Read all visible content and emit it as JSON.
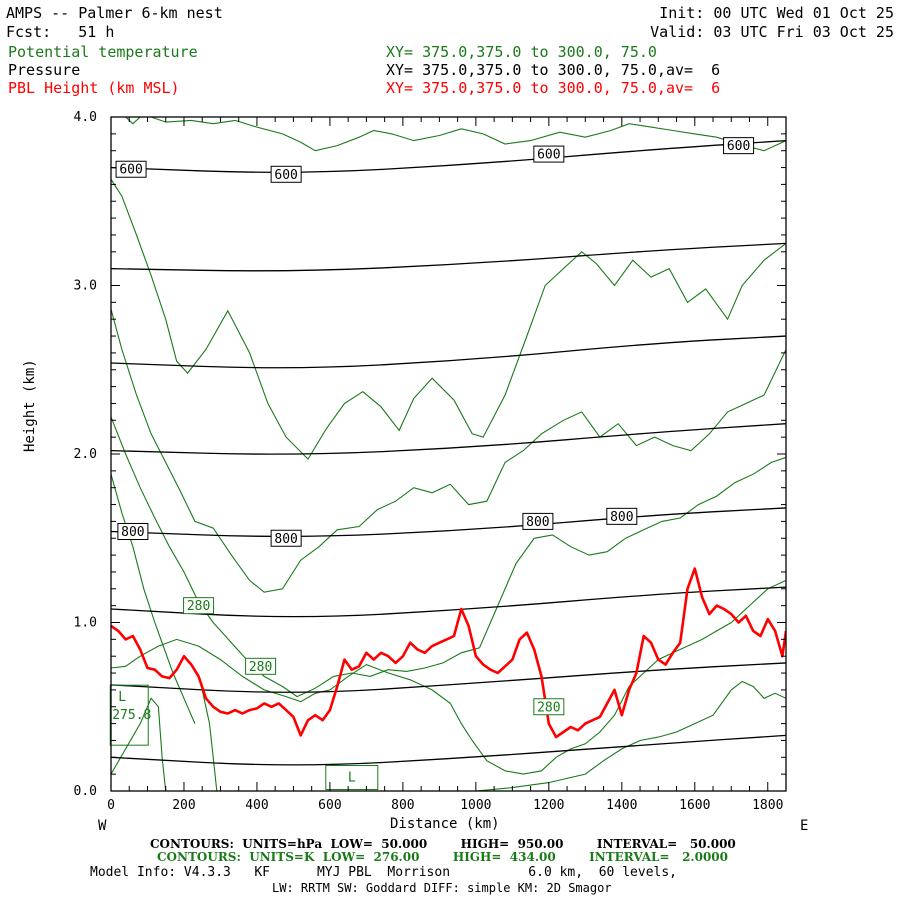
{
  "header": {
    "title": "AMPS -- Palmer 6-km nest",
    "fcst_label": "Fcst:",
    "fcst_value": "51 h",
    "init": "Init: 00 UTC Wed 01 Oct 25",
    "valid": "Valid: 03 UTC Fri 03 Oct 25",
    "field1_name": "Potential temperature",
    "field1_xy": "XY= 375.0,375.0 to 300.0, 75.0",
    "field2_name": "Pressure",
    "field2_xy": "XY= 375.0,375.0 to 300.0, 75.0,av=  6",
    "field3_name": "PBL Height (km MSL)",
    "field3_xy": "XY= 375.0,375.0 to 300.0, 75.0,av=  6"
  },
  "footer": {
    "line1": "CONTOURS:  UNITS=hPa  LOW=  50.000        HIGH=  950.00        INTERVAL=   50.000",
    "line2": "CONTOURS:  UNITS=K  LOW=  276.00        HIGH=  434.00        INTERVAL=   2.0000",
    "line3": "Model Info: V4.3.3   KF      MYJ PBL  Morrison          6.0 km,  60 levels,",
    "line4": "LW: RRTM SW: Goddard DIFF: simple KM: 2D Smagor"
  },
  "colors": {
    "pressure": "#000000",
    "theta": "#1a7a1a",
    "pbl": "#ff0000"
  },
  "chart_data": {
    "type": "line",
    "title": "",
    "xlabel": "Distance (km)",
    "ylabel": "Height (km)",
    "xlim": [
      0,
      1850
    ],
    "ylim": [
      0,
      4.0
    ],
    "xticks": [
      0,
      200,
      400,
      600,
      800,
      1000,
      1200,
      1400,
      1600,
      1800
    ],
    "yticks": [
      0.0,
      1.0,
      2.0,
      3.0,
      4.0
    ],
    "ytick_labels": [
      "0.0",
      "1.0",
      "2.0",
      "3.0",
      "4.0"
    ],
    "x_left_label": "W",
    "x_right_label": "E",
    "grid": false,
    "pressure_contours": [
      {
        "x": [
          0,
          500,
          1000,
          1500,
          1850
        ],
        "y": [
          0.2,
          0.14,
          0.2,
          0.28,
          0.33
        ]
      },
      {
        "x": [
          0,
          500,
          1000,
          1500,
          1850
        ],
        "y": [
          0.63,
          0.57,
          0.64,
          0.72,
          0.76
        ]
      },
      {
        "x": [
          0,
          500,
          1000,
          1500,
          1850
        ],
        "y": [
          1.08,
          1.02,
          1.08,
          1.17,
          1.21
        ]
      },
      {
        "x": [
          0,
          500,
          1000,
          1500,
          1850
        ],
        "y": [
          1.54,
          1.5,
          1.55,
          1.64,
          1.68
        ]
      },
      {
        "x": [
          0,
          500,
          1000,
          1500,
          1850
        ],
        "y": [
          2.02,
          1.99,
          2.04,
          2.13,
          2.18
        ]
      },
      {
        "x": [
          0,
          500,
          1000,
          1500,
          1850
        ],
        "y": [
          2.54,
          2.5,
          2.56,
          2.66,
          2.7
        ]
      },
      {
        "x": [
          0,
          500,
          1000,
          1500,
          1850
        ],
        "y": [
          3.1,
          3.08,
          3.13,
          3.21,
          3.25
        ]
      },
      {
        "x": [
          0,
          500,
          1000,
          1500,
          1850
        ],
        "y": [
          3.7,
          3.66,
          3.72,
          3.81,
          3.86
        ]
      }
    ],
    "pressure_labels": [
      {
        "text": "600",
        "x": 55,
        "y": 3.69
      },
      {
        "text": "600",
        "x": 480,
        "y": 3.66
      },
      {
        "text": "600",
        "x": 1200,
        "y": 3.78
      },
      {
        "text": "600",
        "x": 1720,
        "y": 3.83
      },
      {
        "text": "800",
        "x": 60,
        "y": 1.54
      },
      {
        "text": "800",
        "x": 480,
        "y": 1.5
      },
      {
        "text": "800",
        "x": 1170,
        "y": 1.6
      },
      {
        "text": "800",
        "x": 1400,
        "y": 1.63
      }
    ],
    "theta_contours": [
      {
        "x": [
          40,
          60,
          80,
          110,
          150,
          220,
          280,
          340,
          400,
          470,
          520,
          560,
          620,
          680,
          720,
          770,
          830,
          900,
          960,
          1020,
          1080,
          1150,
          1230,
          1300,
          1370,
          1420,
          1480,
          1540,
          1600,
          1660,
          1720,
          1790,
          1850
        ],
        "y": [
          4.0,
          3.96,
          4.0,
          4.0,
          3.97,
          3.98,
          3.96,
          3.98,
          3.94,
          3.9,
          3.85,
          3.8,
          3.83,
          3.88,
          3.92,
          3.9,
          3.86,
          3.89,
          3.93,
          3.9,
          3.84,
          3.86,
          3.91,
          3.88,
          3.92,
          3.96,
          3.94,
          3.92,
          3.9,
          3.88,
          3.84,
          3.8,
          3.86
        ]
      },
      {
        "x": [
          0,
          30,
          70,
          110,
          150,
          180,
          210,
          260,
          320,
          380,
          430,
          480,
          540,
          590,
          640,
          690,
          740,
          790,
          830,
          880,
          940,
          990,
          1020,
          1080,
          1140,
          1190,
          1240,
          1290,
          1330,
          1380,
          1430,
          1480,
          1530,
          1580,
          1630,
          1690,
          1730,
          1790,
          1850
        ],
        "y": [
          3.63,
          3.53,
          3.3,
          3.06,
          2.8,
          2.55,
          2.48,
          2.62,
          2.85,
          2.6,
          2.3,
          2.1,
          1.97,
          2.15,
          2.3,
          2.37,
          2.28,
          2.14,
          2.33,
          2.45,
          2.32,
          2.12,
          2.1,
          2.35,
          2.7,
          3.0,
          3.1,
          3.2,
          3.13,
          3.0,
          3.15,
          3.05,
          3.1,
          2.9,
          2.98,
          2.8,
          3.0,
          3.15,
          3.25
        ]
      },
      {
        "x": [
          0,
          30,
          70,
          110,
          150,
          190,
          230,
          280,
          330,
          380,
          420,
          470,
          520,
          570,
          620,
          680,
          730,
          780,
          830,
          880,
          930,
          980,
          1030,
          1080,
          1130,
          1180,
          1240,
          1290,
          1340,
          1390,
          1440,
          1490,
          1540,
          1590,
          1640,
          1690,
          1740,
          1790,
          1850
        ],
        "y": [
          2.86,
          2.62,
          2.35,
          2.12,
          1.95,
          1.78,
          1.6,
          1.56,
          1.4,
          1.25,
          1.18,
          1.2,
          1.37,
          1.45,
          1.55,
          1.57,
          1.67,
          1.72,
          1.8,
          1.77,
          1.82,
          1.7,
          1.72,
          1.95,
          2.02,
          2.12,
          2.2,
          2.25,
          2.1,
          2.18,
          2.05,
          2.1,
          2.05,
          2.02,
          2.12,
          2.25,
          2.3,
          2.35,
          2.62
        ]
      },
      {
        "x": [
          0,
          40,
          80,
          120,
          160,
          200,
          240,
          280,
          330,
          380,
          420,
          470,
          510,
          560,
          610,
          660,
          710,
          760,
          810,
          860,
          910,
          960,
          1010,
          1060,
          1110,
          1160,
          1210,
          1260,
          1310,
          1360,
          1410,
          1460,
          1510,
          1560,
          1610,
          1660,
          1710,
          1760,
          1810,
          1850
        ],
        "y": [
          2.22,
          2.0,
          1.8,
          1.62,
          1.45,
          1.3,
          1.12,
          1.0,
          0.88,
          0.76,
          0.68,
          0.62,
          0.56,
          0.61,
          0.68,
          0.7,
          0.68,
          0.72,
          0.71,
          0.73,
          0.76,
          0.82,
          0.85,
          1.1,
          1.35,
          1.5,
          1.52,
          1.45,
          1.4,
          1.42,
          1.5,
          1.55,
          1.6,
          1.62,
          1.7,
          1.75,
          1.83,
          1.88,
          1.95,
          1.98
        ]
      },
      {
        "x": [
          0,
          30,
          60,
          90,
          120,
          150,
          170,
          190,
          210,
          230
        ],
        "y": [
          1.88,
          1.65,
          1.45,
          1.2,
          1.0,
          0.82,
          0.7,
          0.6,
          0.5,
          0.4
        ]
      },
      {
        "x": [
          0,
          40,
          80,
          130,
          180,
          240,
          300,
          360,
          420,
          480,
          520,
          560,
          600,
          650,
          700,
          760,
          820,
          880,
          930,
          960,
          990,
          1030,
          1080,
          1130,
          1180,
          1220,
          1260,
          1300,
          1340,
          1380,
          1420,
          1460,
          1500,
          1540,
          1580,
          1620,
          1660,
          1700,
          1750,
          1800,
          1850
        ],
        "y": [
          0.73,
          0.74,
          0.8,
          0.86,
          0.9,
          0.86,
          0.78,
          0.68,
          0.6,
          0.56,
          0.53,
          0.58,
          0.6,
          0.68,
          0.75,
          0.7,
          0.66,
          0.6,
          0.52,
          0.4,
          0.3,
          0.18,
          0.12,
          0.1,
          0.12,
          0.2,
          0.25,
          0.28,
          0.35,
          0.45,
          0.62,
          0.7,
          0.78,
          0.82,
          0.86,
          0.9,
          0.95,
          1.0,
          1.1,
          1.2,
          1.25
        ]
      },
      {
        "x": [
          1000,
          1100,
          1200,
          1300,
          1350,
          1400,
          1450,
          1500,
          1550,
          1600,
          1650,
          1700,
          1730,
          1760,
          1790,
          1820,
          1850
        ],
        "y": [
          0.0,
          0.02,
          0.05,
          0.1,
          0.18,
          0.25,
          0.3,
          0.32,
          0.35,
          0.4,
          0.45,
          0.6,
          0.65,
          0.62,
          0.55,
          0.58,
          0.55
        ]
      },
      {
        "x": [
          0,
          40,
          80,
          110,
          130,
          140,
          150
        ],
        "y": [
          0.1,
          0.25,
          0.4,
          0.55,
          0.5,
          0.2,
          0.0
        ]
      },
      {
        "x": [
          250,
          270,
          280,
          285,
          290
        ],
        "y": [
          0.6,
          0.4,
          0.2,
          0.1,
          0.0
        ]
      }
    ],
    "theta_labels": [
      {
        "text": "280",
        "x": 240,
        "y": 1.1
      },
      {
        "text": "280",
        "x": 410,
        "y": 0.74
      },
      {
        "text": "280",
        "x": 1200,
        "y": 0.5
      }
    ],
    "low_markers": [
      {
        "letter": "L",
        "value": "275.8",
        "x": 50,
        "y": 0.45
      },
      {
        "letter": "L",
        "value": "",
        "x": 660,
        "y": 0.08
      }
    ],
    "pbl_height": {
      "name": "PBL Height (km MSL)",
      "x": [
        0,
        20,
        40,
        60,
        80,
        100,
        120,
        140,
        160,
        180,
        200,
        220,
        240,
        260,
        280,
        300,
        320,
        340,
        360,
        380,
        400,
        420,
        440,
        460,
        480,
        500,
        520,
        540,
        560,
        580,
        600,
        620,
        640,
        660,
        680,
        700,
        720,
        740,
        760,
        780,
        800,
        820,
        840,
        860,
        880,
        900,
        920,
        940,
        960,
        980,
        1000,
        1020,
        1040,
        1060,
        1080,
        1100,
        1120,
        1140,
        1160,
        1180,
        1200,
        1220,
        1240,
        1260,
        1280,
        1300,
        1320,
        1340,
        1360,
        1380,
        1400,
        1420,
        1440,
        1460,
        1480,
        1500,
        1520,
        1540,
        1560,
        1580,
        1600,
        1620,
        1640,
        1660,
        1680,
        1700,
        1720,
        1740,
        1760,
        1780,
        1800,
        1820,
        1840,
        1850
      ],
      "y": [
        0.98,
        0.95,
        0.9,
        0.92,
        0.84,
        0.73,
        0.72,
        0.68,
        0.67,
        0.72,
        0.8,
        0.75,
        0.68,
        0.55,
        0.5,
        0.47,
        0.46,
        0.48,
        0.46,
        0.48,
        0.49,
        0.52,
        0.5,
        0.52,
        0.48,
        0.44,
        0.33,
        0.42,
        0.45,
        0.42,
        0.48,
        0.62,
        0.78,
        0.72,
        0.74,
        0.82,
        0.78,
        0.82,
        0.8,
        0.76,
        0.8,
        0.88,
        0.84,
        0.82,
        0.86,
        0.88,
        0.9,
        0.92,
        1.08,
        0.98,
        0.8,
        0.75,
        0.72,
        0.7,
        0.74,
        0.78,
        0.9,
        0.94,
        0.84,
        0.68,
        0.4,
        0.32,
        0.35,
        0.38,
        0.36,
        0.4,
        0.42,
        0.44,
        0.52,
        0.6,
        0.45,
        0.6,
        0.7,
        0.92,
        0.88,
        0.78,
        0.75,
        0.82,
        0.88,
        1.2,
        1.32,
        1.15,
        1.05,
        1.1,
        1.08,
        1.05,
        1.0,
        1.04,
        0.95,
        0.92,
        1.02,
        0.95,
        0.8,
        0.95
      ]
    }
  }
}
